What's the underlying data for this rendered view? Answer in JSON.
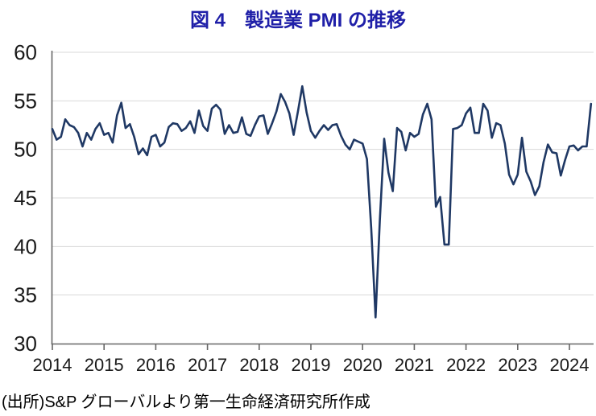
{
  "header": {
    "title": "図 4　製造業 PMI の推移",
    "title_color": "#1F1FA8"
  },
  "footer": {
    "source": "(出所)S&P グローバルより第一生命経済研究所作成"
  },
  "chart_data": {
    "type": "line",
    "title": "図 4　製造業 PMI の推移",
    "x_start": "2014-01",
    "frequency": "monthly",
    "x_tick_labels": [
      "2014",
      "2015",
      "2016",
      "2017",
      "2018",
      "2019",
      "2020",
      "2021",
      "2022",
      "2023",
      "2024"
    ],
    "y_ticks": [
      30,
      35,
      40,
      45,
      50,
      55,
      60
    ],
    "ylim": [
      30,
      60
    ],
    "grid": "horizontal-only",
    "legend": "none",
    "series": [
      {
        "name": "製造業PMI",
        "values": [
          52.1,
          51.0,
          51.3,
          53.1,
          52.5,
          52.3,
          51.7,
          50.3,
          51.7,
          51.0,
          52.1,
          52.7,
          51.5,
          51.7,
          50.7,
          53.5,
          54.8,
          52.2,
          52.6,
          51.3,
          49.5,
          50.1,
          49.4,
          51.3,
          51.5,
          50.3,
          50.7,
          52.3,
          52.7,
          52.6,
          51.9,
          52.2,
          52.9,
          51.7,
          54.0,
          52.4,
          51.9,
          54.2,
          54.6,
          54.1,
          51.6,
          52.5,
          51.7,
          51.8,
          53.3,
          51.6,
          51.4,
          52.5,
          53.4,
          53.5,
          51.6,
          52.7,
          53.9,
          55.7,
          54.9,
          53.7,
          51.5,
          53.9,
          56.5,
          53.8,
          51.9,
          51.2,
          51.9,
          52.5,
          52.0,
          52.5,
          52.6,
          51.4,
          50.5,
          50.0,
          51.0,
          50.8,
          50.6,
          49.0,
          41.9,
          32.7,
          42.7,
          51.1,
          47.6,
          45.7,
          52.2,
          51.8,
          49.9,
          51.7,
          51.3,
          51.6,
          53.6,
          54.7,
          53.1,
          44.1,
          45.1,
          40.2,
          40.2,
          52.1,
          52.2,
          52.5,
          53.7,
          54.3,
          51.7,
          51.7,
          54.7,
          54.0,
          51.2,
          52.7,
          52.5,
          50.6,
          47.4,
          46.4,
          47.4,
          51.2,
          47.7,
          46.7,
          45.3,
          46.2,
          48.7,
          50.5,
          49.7,
          49.6,
          47.3,
          48.9,
          50.3,
          50.4,
          49.9,
          50.3,
          50.3,
          54.7
        ]
      }
    ],
    "style": {
      "line_color": "#1F3864",
      "grid_color": "#D9D9D9",
      "axis_color": "#666666",
      "tick_label_color": "#1A1A1A"
    }
  }
}
